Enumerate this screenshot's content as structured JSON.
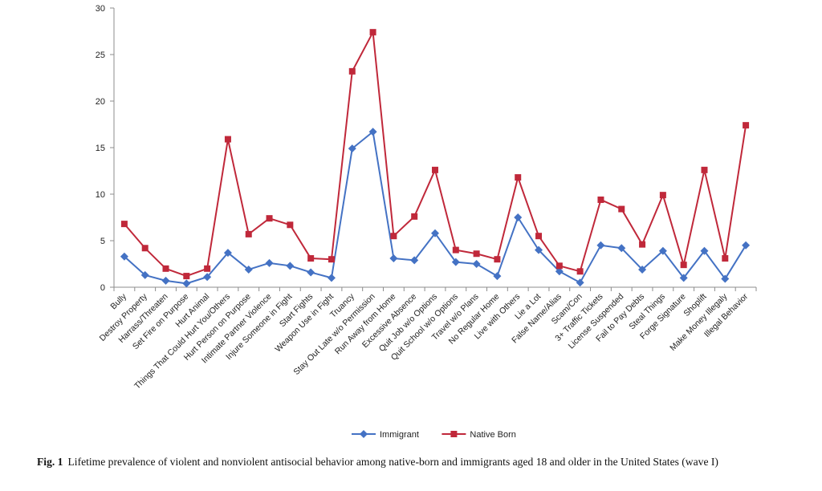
{
  "chart_data": {
    "type": "line",
    "title": "",
    "xlabel": "",
    "ylabel": "",
    "ylim": [
      0,
      30
    ],
    "yticks": [
      0,
      5,
      10,
      15,
      20,
      25,
      30
    ],
    "grid": false,
    "legend_position": "bottom",
    "categories": [
      "Bully",
      "Destroy Property",
      "Harrass/Threaten",
      "Set Fire on Purpose",
      "Hurt Animal",
      "Things That Could Hurt You/Others",
      "Hurt Person on Purpose",
      "Intimate Partner Violence",
      "Injure Someone in Fight",
      "Start Fights",
      "Weapon Use in Fight",
      "Truancy",
      "Stay Out Late w/o Permission",
      "Run Away from Home",
      "Excessive Absence",
      "Quit Job w/o Options",
      "Quit School w/o Options",
      "Travel w/o Plans",
      "No Regular Home",
      "Live with Others",
      "Lie a Lot",
      "False Name/Alias",
      "Scam/Con",
      "3+ Traffic Tickets",
      "License Suspended",
      "Fail to Pay Debts",
      "Steal Things",
      "Forge Signature",
      "Shoplift",
      "Make Money Illegaly",
      "Illegal Behavior"
    ],
    "series": [
      {
        "name": "Immigrant",
        "color": "#4472C4",
        "marker": "diamond",
        "values": [
          3.3,
          1.3,
          0.7,
          0.4,
          1.1,
          3.7,
          1.9,
          2.6,
          2.3,
          1.6,
          1.0,
          14.9,
          16.7,
          3.1,
          2.9,
          5.8,
          2.7,
          2.5,
          1.2,
          7.5,
          4.0,
          1.7,
          0.5,
          4.5,
          4.2,
          1.9,
          3.9,
          1.0,
          3.9,
          0.9,
          4.5
        ]
      },
      {
        "name": "Native Born",
        "color": "#C0283A",
        "marker": "square",
        "values": [
          6.8,
          4.2,
          2.0,
          1.2,
          2.0,
          15.9,
          5.7,
          7.4,
          6.7,
          3.1,
          3.0,
          23.2,
          27.4,
          5.5,
          7.6,
          12.6,
          4.0,
          3.6,
          3.0,
          11.8,
          5.5,
          2.3,
          1.7,
          9.4,
          8.4,
          4.6,
          9.9,
          2.4,
          12.6,
          3.1,
          17.4
        ]
      }
    ]
  },
  "caption": {
    "label": "Fig. 1",
    "text": "Lifetime prevalence of violent and nonviolent antisocial behavior among native-born and immigrants aged 18 and older in the United States (wave I)"
  }
}
